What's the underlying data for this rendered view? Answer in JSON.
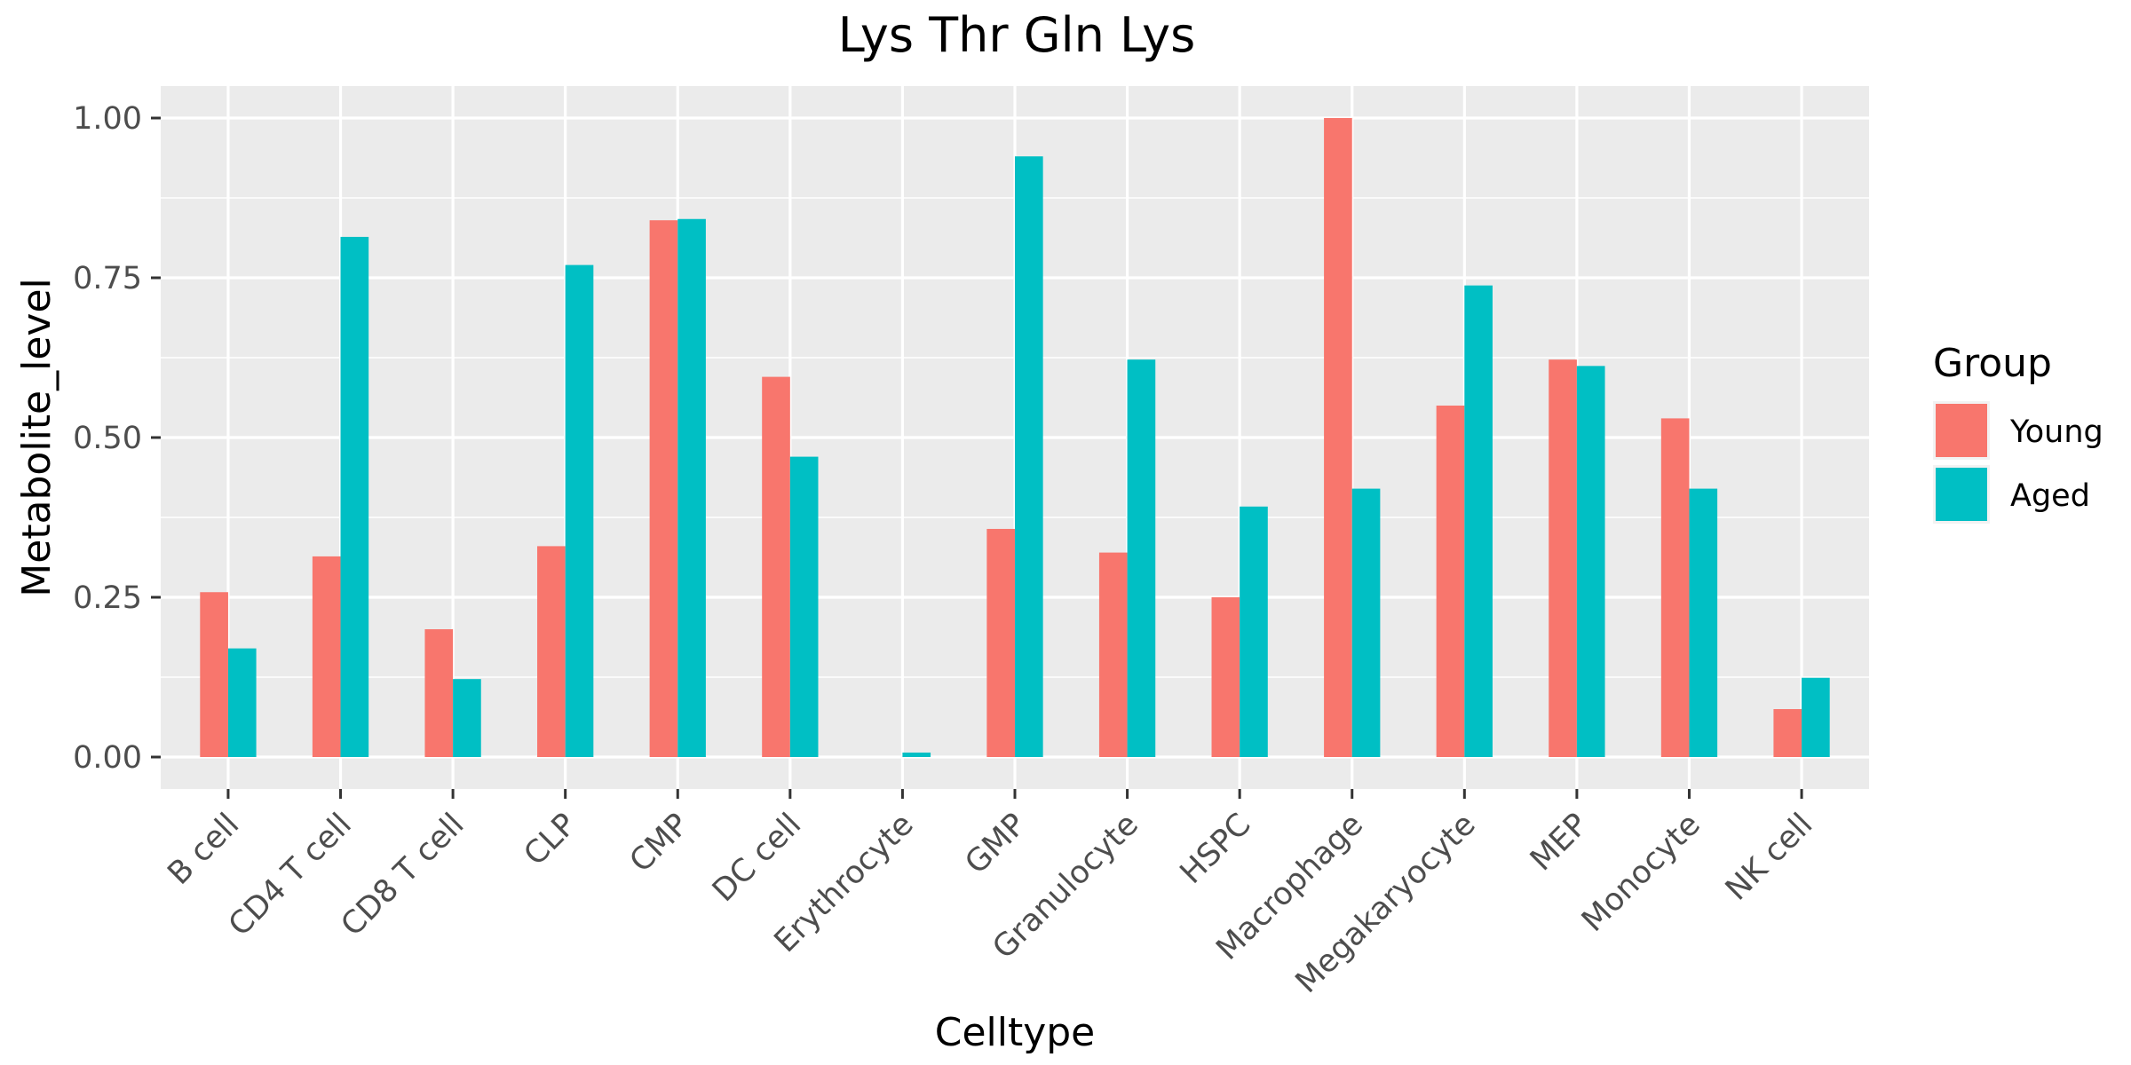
{
  "chart_data": {
    "type": "bar",
    "title": "Lys Thr Gln Lys",
    "xlabel": "Celltype",
    "ylabel": "Metabolite_level",
    "ylim": [
      -0.05,
      1.05
    ],
    "yticks": [
      "0.00",
      "0.25",
      "0.50",
      "0.75",
      "1.00"
    ],
    "ytick_values": [
      0,
      0.25,
      0.5,
      0.75,
      1.0
    ],
    "categories": [
      "B cell",
      "CD4 T cell",
      "CD8 T cell",
      "CLP",
      "CMP",
      "DC cell",
      "Erythrocyte",
      "GMP",
      "Granulocyte",
      "HSPC",
      "Macrophage",
      "Megakaryocyte",
      "MEP",
      "Monocyte",
      "NK cell"
    ],
    "series": [
      {
        "name": "Young",
        "color": "#F8766D",
        "values": [
          0.258,
          0.314,
          0.2,
          0.33,
          0.84,
          0.595,
          0.0,
          0.357,
          0.32,
          0.25,
          1.0,
          0.55,
          0.622,
          0.53,
          0.075
        ]
      },
      {
        "name": "Aged",
        "color": "#00BFC4",
        "values": [
          0.17,
          0.814,
          0.122,
          0.77,
          0.842,
          0.47,
          0.007,
          0.94,
          0.622,
          0.392,
          0.42,
          0.738,
          0.612,
          0.42,
          0.124
        ]
      }
    ],
    "legend": {
      "title": "Group",
      "position": "right"
    },
    "grid": true,
    "panel_background": "#EBEBEB",
    "grid_color": "#FFFFFF"
  }
}
